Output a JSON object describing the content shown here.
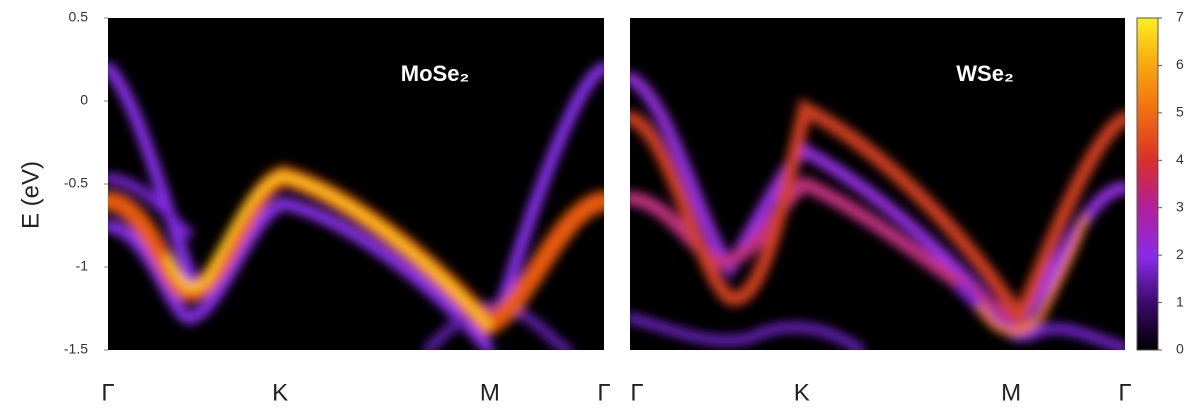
{
  "chart_data": {
    "type": "heatmap",
    "ylabel": "E (eV)",
    "ylim": [
      -1.5,
      0.5
    ],
    "yticks": [
      -1.5,
      -1,
      -0.5,
      0,
      0.5
    ],
    "categories": [
      "Γ",
      "K",
      "M",
      "Γ"
    ],
    "panels": [
      {
        "label": "MoSe₂"
      },
      {
        "label": "WSe₂"
      }
    ],
    "colorbar": {
      "lim": [
        0,
        7
      ],
      "ticks": [
        0,
        1,
        2,
        3,
        4,
        5,
        6,
        7
      ]
    }
  }
}
